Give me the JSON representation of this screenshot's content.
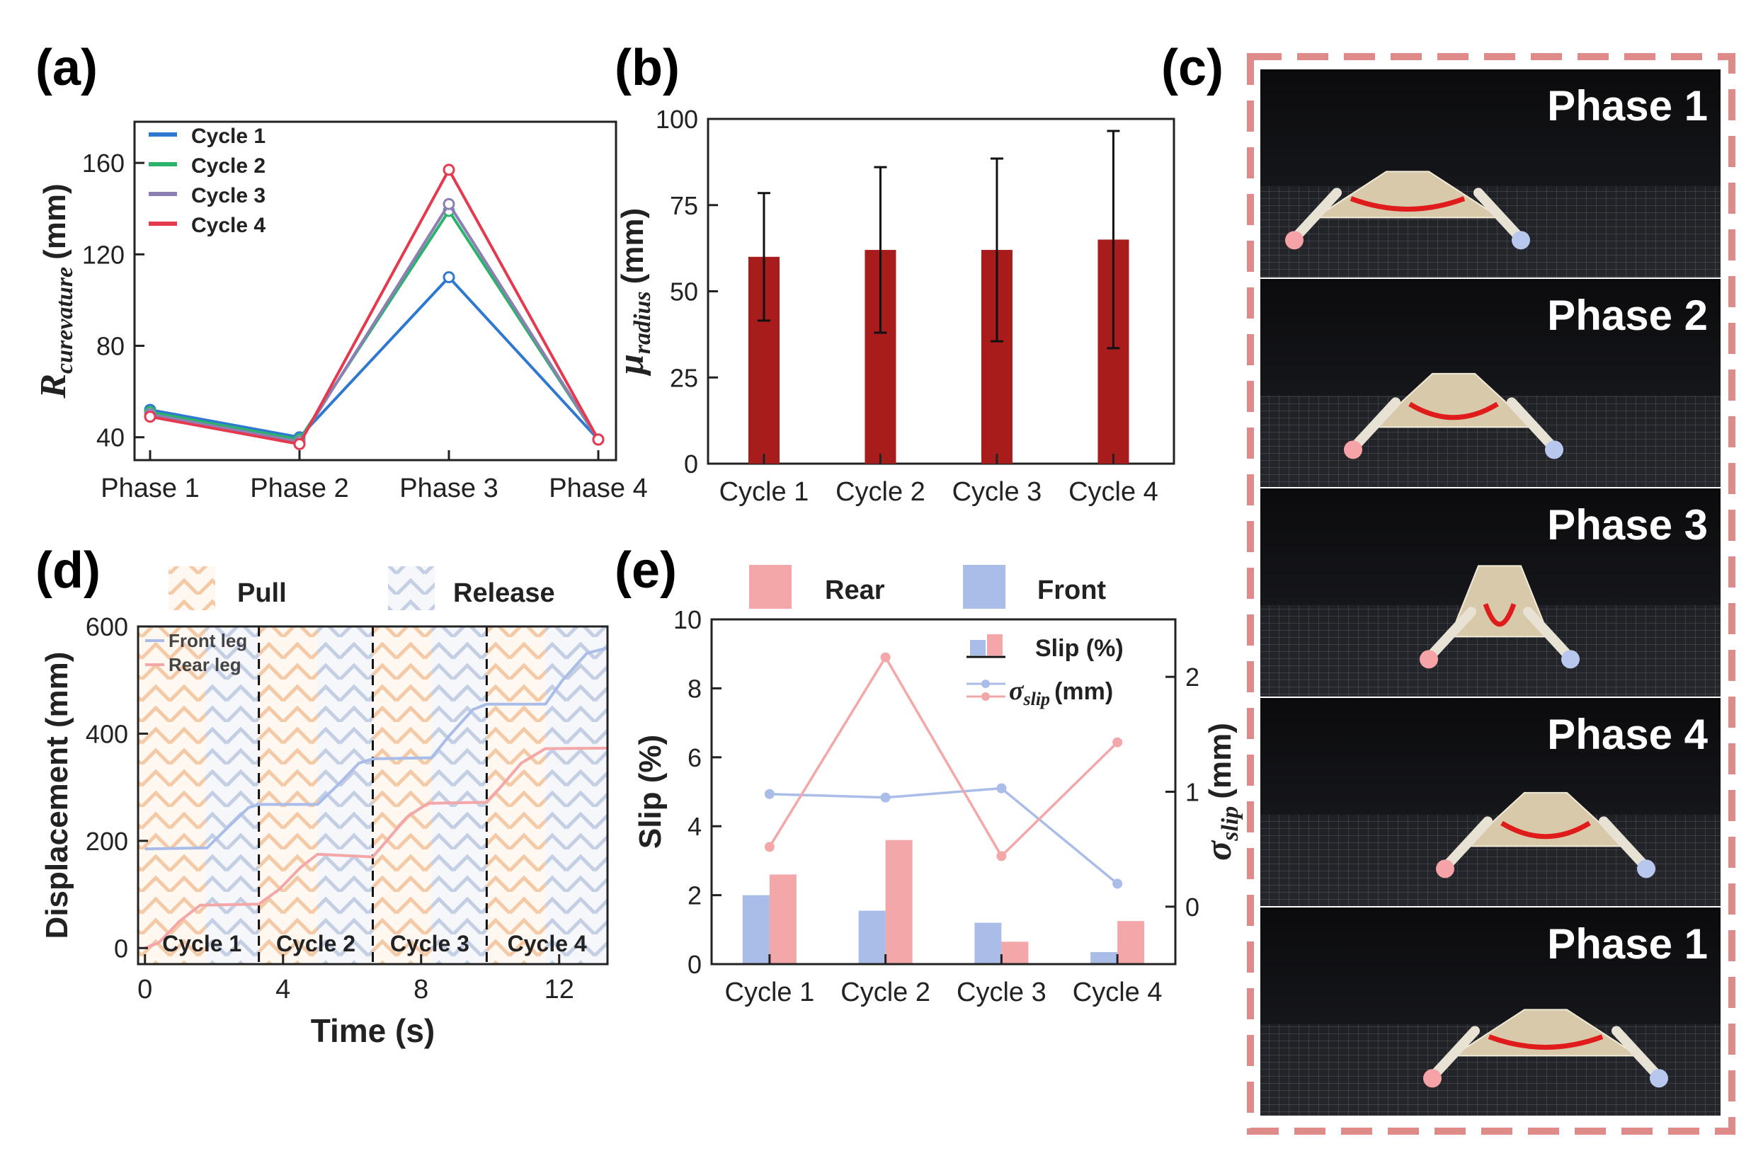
{
  "panel_labels": {
    "a": "(a)",
    "b": "(b)",
    "c": "(c)",
    "d": "(d)",
    "e": "(e)"
  },
  "colors": {
    "cycle1": "#2f78d2",
    "cycle2": "#2bb36b",
    "cycle3": "#8d7fb5",
    "cycle4": "#e5394f",
    "bar_b": "#a81c1c",
    "front": "#a9bde8",
    "rear": "#f4a7a9",
    "pull_stripe": "#f7d3b6",
    "release_stripe": "#c9d3e5",
    "frame_dash": "#dd8a88"
  },
  "chart_data": [
    {
      "id": "a",
      "type": "line",
      "title": "",
      "xlabel": "",
      "ylabel_main": "R",
      "ylabel_sub": "curevature",
      "ylabel_unit": "(mm)",
      "categories": [
        "Phase 1",
        "Phase 2",
        "Phase 3",
        "Phase 4"
      ],
      "ylim": [
        30,
        178
      ],
      "yticks": [
        40,
        80,
        120,
        160
      ],
      "series": [
        {
          "name": "Cycle 1",
          "values": [
            52,
            40,
            110,
            39
          ]
        },
        {
          "name": "Cycle 2",
          "values": [
            51,
            39,
            139,
            39
          ]
        },
        {
          "name": "Cycle 3",
          "values": [
            50,
            38,
            142,
            39
          ]
        },
        {
          "name": "Cycle 4",
          "values": [
            49,
            37,
            157,
            39
          ]
        }
      ],
      "legend": [
        "Cycle 1",
        "Cycle 2",
        "Cycle 3",
        "Cycle 4"
      ],
      "legend_position": "top-left"
    },
    {
      "id": "b",
      "type": "bar",
      "title": "",
      "ylabel_main": "μ",
      "ylabel_sub": "radius",
      "ylabel_unit": "(mm)",
      "categories": [
        "Cycle 1",
        "Cycle 2",
        "Cycle 3",
        "Cycle 4"
      ],
      "values": [
        60,
        62,
        62,
        65
      ],
      "errors": [
        18.5,
        24,
        26.5,
        31.5
      ],
      "ylim": [
        0,
        100
      ],
      "yticks": [
        0,
        25,
        50,
        75,
        100
      ]
    },
    {
      "id": "d",
      "type": "line",
      "xlabel": "Time (s)",
      "ylabel": "Displacement (mm)",
      "xlim": [
        -0.2,
        13.4
      ],
      "ylim": [
        -30,
        600
      ],
      "xticks": [
        0,
        4,
        8,
        12
      ],
      "yticks": [
        0,
        200,
        400,
        600
      ],
      "header_legend": {
        "pull": "Pull",
        "release": "Release"
      },
      "cycle_labels": [
        "Cycle 1",
        "Cycle 2",
        "Cycle 3",
        "Cycle 4"
      ],
      "cycle_boundaries": [
        3.3,
        6.6,
        9.9
      ],
      "release_starts": [
        1.75,
        5.0,
        8.3,
        11.6
      ],
      "series": [
        {
          "name": "Front leg",
          "x": [
            0,
            1.8,
            2.4,
            3.0,
            3.3,
            5.0,
            5.6,
            6.2,
            6.6,
            8.3,
            8.8,
            9.5,
            9.9,
            11.6,
            12.1,
            12.8,
            13.4
          ],
          "y": [
            185,
            187,
            225,
            262,
            268,
            268,
            305,
            345,
            353,
            355,
            395,
            445,
            455,
            455,
            500,
            550,
            560
          ]
        },
        {
          "name": "Rear leg",
          "x": [
            0,
            0.4,
            1.0,
            1.6,
            3.3,
            3.9,
            4.5,
            5.0,
            6.6,
            7.0,
            7.6,
            8.2,
            9.9,
            10.3,
            10.9,
            11.6,
            13.4
          ],
          "y": [
            0,
            10,
            50,
            80,
            82,
            110,
            150,
            175,
            170,
            200,
            245,
            270,
            272,
            300,
            345,
            372,
            373
          ]
        }
      ]
    },
    {
      "id": "e",
      "type": "bar",
      "xlabel": "",
      "ylabel": "Slip (%)",
      "ylabel_right_main": "σ",
      "ylabel_right_sub": "slip",
      "ylabel_right_unit": "(mm)",
      "categories": [
        "Cycle 1",
        "Cycle 2",
        "Cycle 3",
        "Cycle 4"
      ],
      "ylim": [
        0,
        10
      ],
      "yticks": [
        0,
        2,
        4,
        6,
        8,
        10
      ],
      "ylim_right": [
        -0.5,
        2.5
      ],
      "yticks_right": [
        0,
        1,
        2
      ],
      "header_legend": {
        "rear": "Rear",
        "front": "Front"
      },
      "legend": {
        "slip": "Slip (%)",
        "sigma_main": "σ",
        "sigma_sub": "slip",
        "sigma_unit": "(mm)"
      },
      "bars": [
        {
          "name": "Front",
          "values": [
            2.0,
            1.55,
            1.2,
            0.35
          ]
        },
        {
          "name": "Rear",
          "values": [
            2.6,
            3.6,
            0.65,
            1.25
          ]
        }
      ],
      "lines": [
        {
          "name": "Front σslip",
          "values": [
            0.98,
            0.95,
            1.03,
            0.2
          ]
        },
        {
          "name": "Rear σslip",
          "values": [
            0.52,
            2.17,
            0.44,
            1.43
          ]
        }
      ]
    }
  ],
  "photo_panel": {
    "phases": [
      "Phase 1",
      "Phase 2",
      "Phase 3",
      "Phase 4",
      "Phase 1"
    ]
  }
}
